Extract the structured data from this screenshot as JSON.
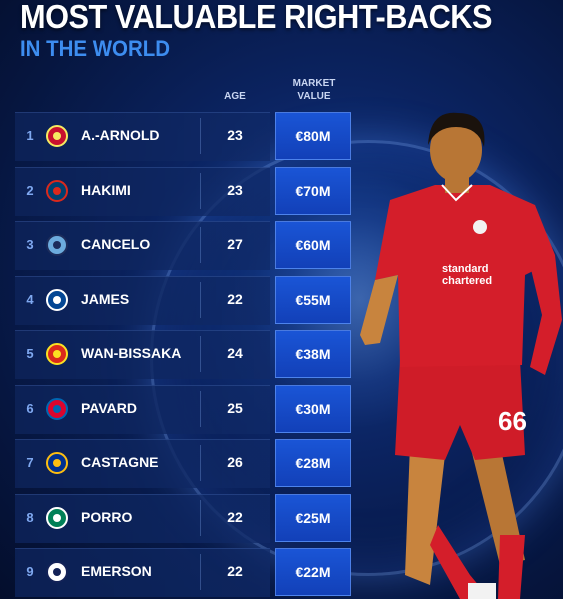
{
  "title": "MOST VALUABLE RIGHT-BACKS",
  "subtitle": "IN THE WORLD",
  "headers": {
    "age": "AGE",
    "market_value_1": "MARKET",
    "market_value_2": "VALUE"
  },
  "rows": [
    {
      "rank": "1",
      "club": "liverpool-crest-icon",
      "name": "A.-ARNOLD",
      "age": "23",
      "value": "€80M"
    },
    {
      "rank": "2",
      "club": "psg-crest-icon",
      "name": "HAKIMI",
      "age": "23",
      "value": "€70M"
    },
    {
      "rank": "3",
      "club": "man-city-crest-icon",
      "name": "CANCELO",
      "age": "27",
      "value": "€60M"
    },
    {
      "rank": "4",
      "club": "chelsea-crest-icon",
      "name": "JAMES",
      "age": "22",
      "value": "€55M"
    },
    {
      "rank": "5",
      "club": "man-united-crest-icon",
      "name": "WAN-BISSAKA",
      "age": "24",
      "value": "€38M"
    },
    {
      "rank": "6",
      "club": "bayern-crest-icon",
      "name": "PAVARD",
      "age": "25",
      "value": "€30M"
    },
    {
      "rank": "7",
      "club": "leicester-crest-icon",
      "name": "CASTAGNE",
      "age": "26",
      "value": "€28M"
    },
    {
      "rank": "8",
      "club": "sporting-crest-icon",
      "name": "PORRO",
      "age": "22",
      "value": "€25M"
    },
    {
      "rank": "9",
      "club": "tottenham-crest-icon",
      "name": "EMERSON",
      "age": "22",
      "value": "€22M"
    }
  ],
  "player": {
    "shirt_number": "66",
    "sponsor_1": "standard",
    "sponsor_2": "chartered"
  },
  "colors": {
    "accent": "#3d8df0",
    "value_box": "#1a55d6",
    "kit_red": "#d41e2a",
    "background": "#0b2360"
  }
}
